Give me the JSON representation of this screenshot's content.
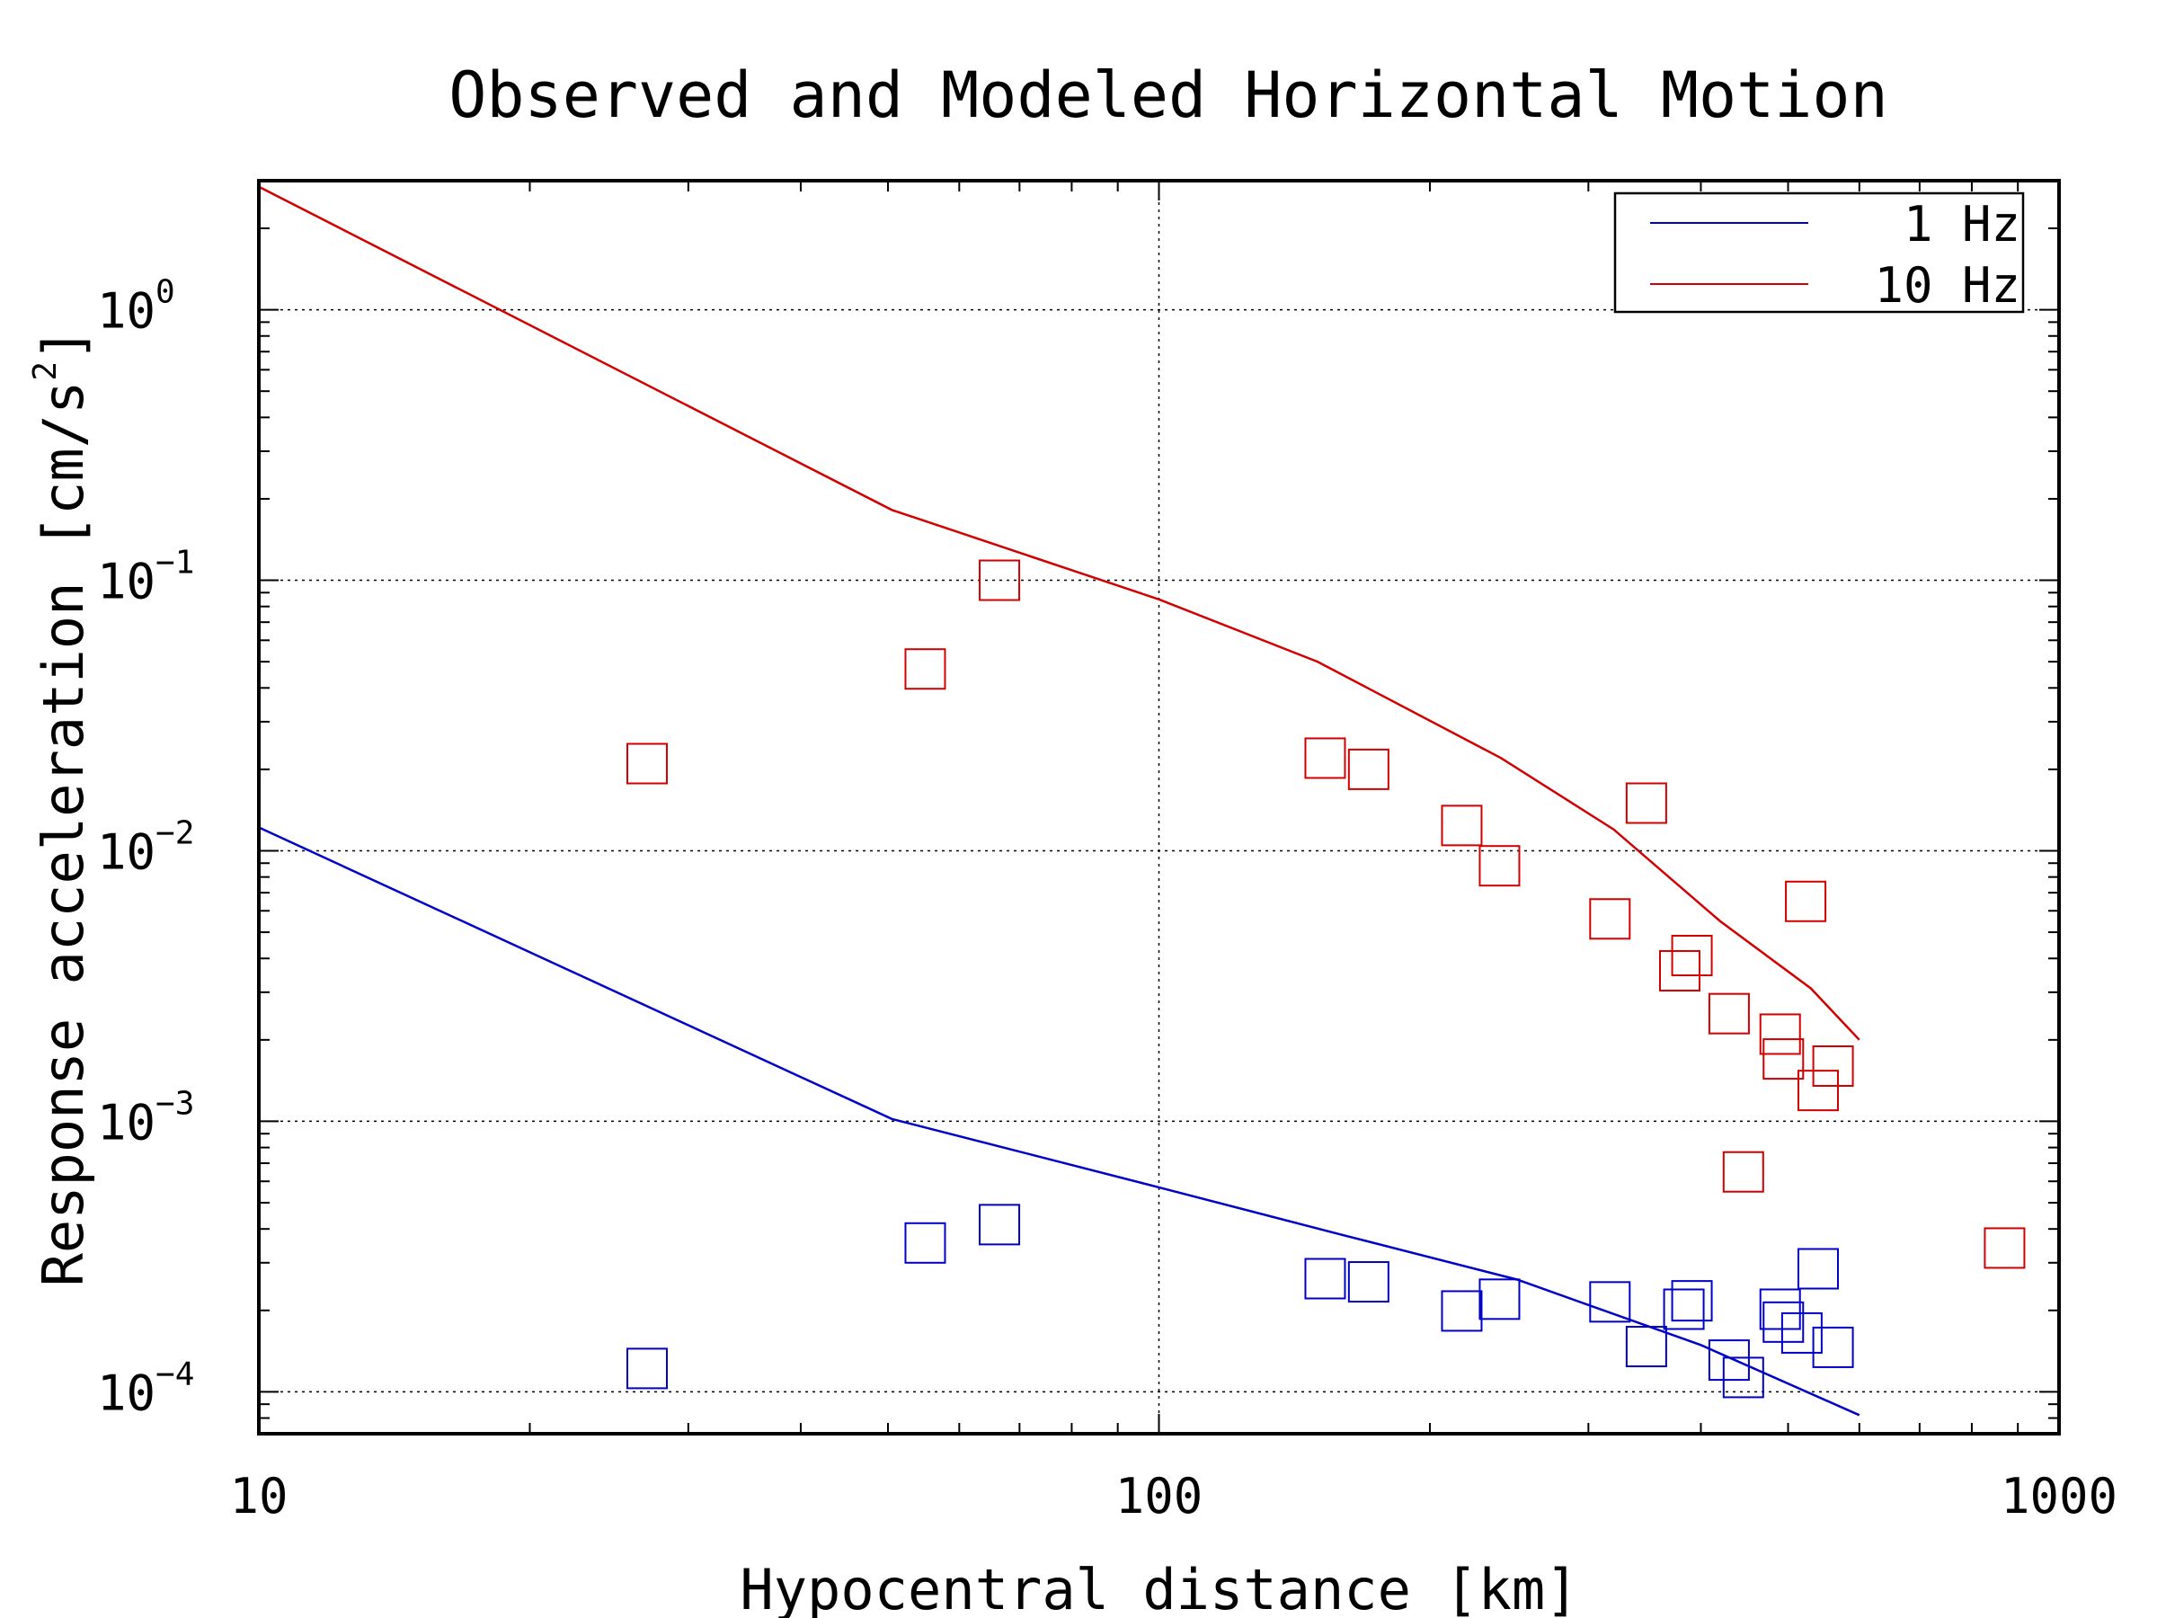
{
  "chart_data": {
    "type": "scatter",
    "title": "Observed and Modeled Horizontal Motion",
    "xlabel": "Hypocentral distance [km]",
    "ylabel": "Response acceleration [cm/s",
    "ylabel_sup": "2",
    "ylabel_close": "]",
    "xscale": "log",
    "yscale": "log",
    "xlim": [
      10,
      1000
    ],
    "ylim": [
      7e-05,
      3.0
    ],
    "grid": true,
    "legend_position": "top-right",
    "x_ticks": [
      {
        "value": 10,
        "label": "10"
      },
      {
        "value": 100,
        "label": "100"
      },
      {
        "value": 1000,
        "label": "1000"
      }
    ],
    "y_ticks": [
      {
        "value": 1,
        "base": "10",
        "exp": "0"
      },
      {
        "value": 0.1,
        "base": "10",
        "exp": "−1"
      },
      {
        "value": 0.01,
        "base": "10",
        "exp": "−2"
      },
      {
        "value": 0.001,
        "base": "10",
        "exp": "−3"
      },
      {
        "value": 0.0001,
        "base": "10",
        "exp": "−4"
      }
    ],
    "series": [
      {
        "name": "1 Hz",
        "color": "#0000c8",
        "model": {
          "x": [
            10,
            50.5,
            100,
            160,
            250,
            400,
            600
          ],
          "y": [
            0.0122,
            0.00102,
            0.00057,
            0.00038,
            0.00026,
            0.000149,
            8.2e-05
          ]
        },
        "observed": {
          "x": [
            27,
            55,
            66.5,
            153,
            171,
            217,
            239,
            317,
            348,
            383,
            391,
            430,
            446,
            490,
            494,
            518,
            540,
            561
          ],
          "y": [
            0.000122,
            0.000355,
            0.000415,
            0.000262,
            0.000255,
            0.000199,
            0.00022,
            0.000215,
            0.000147,
            0.000202,
            0.000217,
            0.000131,
            0.000113,
            0.000202,
            0.000181,
            0.000165,
            0.000285,
            0.000146
          ]
        }
      },
      {
        "name": "10 Hz",
        "color": "#d20000",
        "model": {
          "x": [
            10,
            50.5,
            100,
            150,
            240,
            320,
            420,
            530,
            600
          ],
          "y": [
            2.85,
            0.182,
            0.085,
            0.05,
            0.022,
            0.012,
            0.0055,
            0.0031,
            0.002
          ]
        },
        "observed": {
          "x": [
            27,
            55,
            66.5,
            153,
            171,
            217,
            239,
            317,
            348,
            379,
            391,
            430,
            446,
            490,
            494,
            523,
            540,
            561,
            870
          ],
          "y": [
            0.021,
            0.047,
            0.1,
            0.022,
            0.02,
            0.0124,
            0.0088,
            0.0056,
            0.015,
            0.0036,
            0.0041,
            0.0025,
            0.00065,
            0.0021,
            0.0017,
            0.0065,
            0.0013,
            0.0016,
            0.00034
          ]
        }
      }
    ]
  }
}
